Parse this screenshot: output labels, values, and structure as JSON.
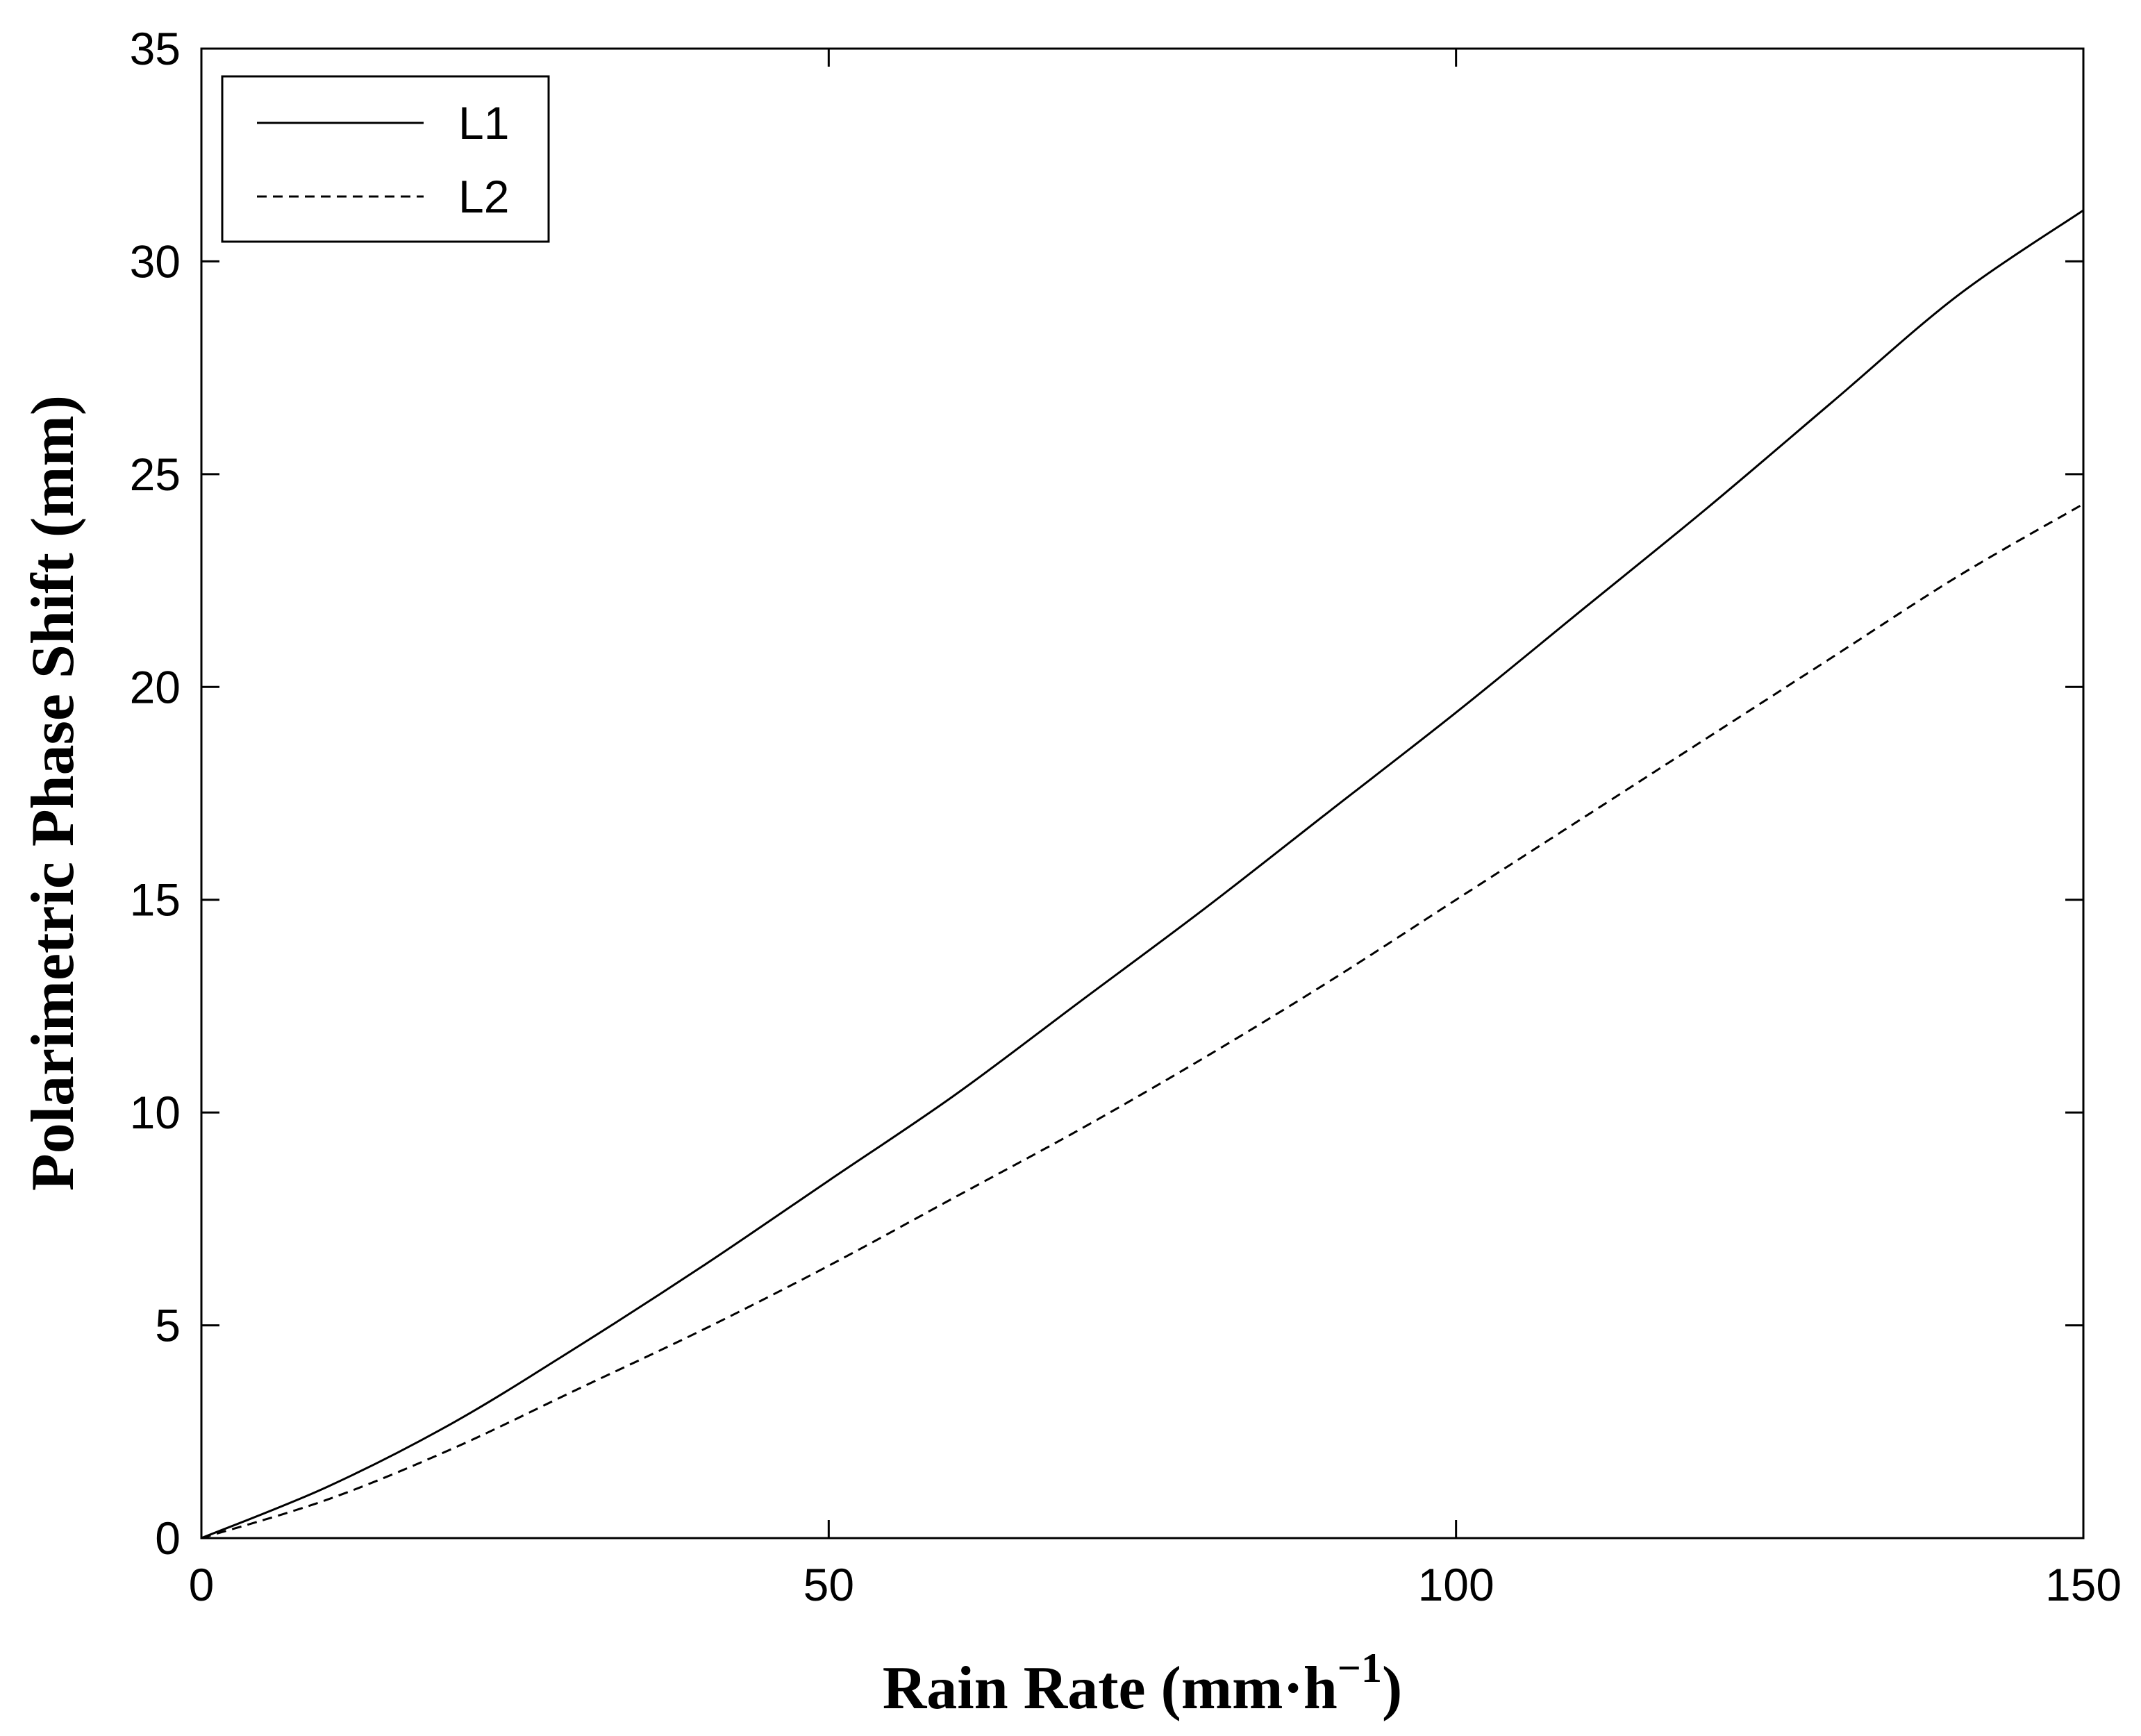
{
  "chart_data": {
    "type": "line",
    "title": "",
    "xlabel": "Rain Rate (mm·h",
    "xlabel_sup": "−1",
    "xlabel_close": ")",
    "ylabel": "Polarimetric Phase Shift (mm)",
    "xlim": [
      0,
      150
    ],
    "ylim": [
      0,
      35
    ],
    "xticks": [
      0,
      50,
      100,
      150
    ],
    "yticks": [
      0,
      5,
      10,
      15,
      20,
      25,
      30,
      35
    ],
    "xtick_labels": [
      "0",
      "50",
      "100",
      "150"
    ],
    "ytick_labels": [
      "0",
      "5",
      "10",
      "15",
      "20",
      "25",
      "30",
      "35"
    ],
    "grid": false,
    "legend_position": "top-left",
    "series": [
      {
        "name": "L1",
        "style": "solid",
        "color": "#000000",
        "x": [
          0,
          10,
          20,
          30,
          40,
          50,
          60,
          70,
          80,
          90,
          100,
          110,
          120,
          130,
          140,
          150
        ],
        "y": [
          0,
          1.2,
          2.7,
          4.5,
          6.4,
          8.4,
          10.4,
          12.6,
          14.8,
          17.1,
          19.4,
          21.8,
          24.2,
          26.7,
          29.2,
          31.2
        ]
      },
      {
        "name": "L2",
        "style": "dashed",
        "color": "#000000",
        "x": [
          0,
          10,
          20,
          30,
          40,
          50,
          60,
          70,
          80,
          90,
          100,
          110,
          120,
          130,
          140,
          150
        ],
        "y": [
          0,
          0.9,
          2.1,
          3.5,
          4.9,
          6.4,
          8.0,
          9.6,
          11.3,
          13.1,
          15.0,
          16.9,
          18.8,
          20.7,
          22.6,
          24.3
        ]
      }
    ]
  }
}
